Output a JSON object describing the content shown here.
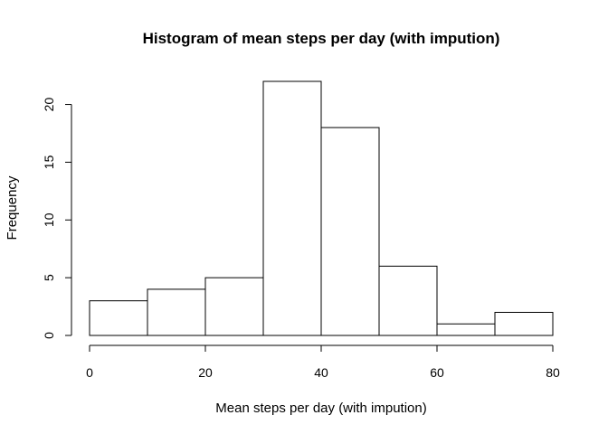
{
  "chart_data": {
    "type": "bar",
    "subtype": "histogram",
    "title": "Histogram of mean steps per day (with impution)",
    "xlabel": "Mean steps per day (with impution)",
    "ylabel": "Frequency",
    "bin_edges": [
      0,
      10,
      20,
      30,
      40,
      50,
      60,
      70,
      80
    ],
    "values": [
      3,
      4,
      5,
      22,
      18,
      6,
      1,
      2
    ],
    "xlim": [
      0,
      80
    ],
    "ylim": [
      0,
      22
    ],
    "x_ticks": [
      0,
      20,
      40,
      60,
      80
    ],
    "y_ticks": [
      0,
      5,
      10,
      15,
      20
    ],
    "grid": false,
    "bar_fill": "#ffffff",
    "bar_stroke": "#000000"
  }
}
